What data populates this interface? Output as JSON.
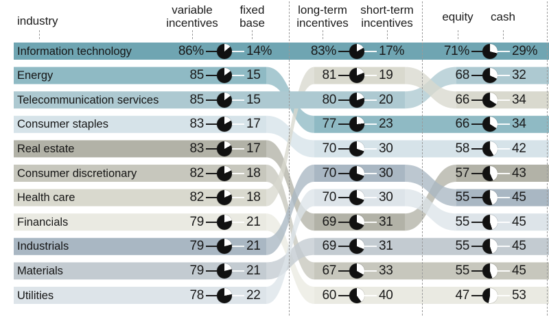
{
  "headers": {
    "industry": "industry",
    "variable": "variable\nincentives",
    "fixed": "fixed\nbase",
    "long_term": "long-term\nincentives",
    "short_term": "short-term\nincentives",
    "equity": "equity",
    "cash": "cash"
  },
  "style": {
    "text_color": "#1a1a1a",
    "divider_color": "#9a9a9a",
    "pie_black": "#111111",
    "pie_white": "#ffffff",
    "background": "#ffffff"
  },
  "chart_data": {
    "type": "table",
    "subtype": "ribbon-bump-flow-chart",
    "unit": "%",
    "percent_suffix_on_first_row_only": true,
    "column_pairs": [
      [
        "variable incentives",
        "fixed base"
      ],
      [
        "long-term incentives",
        "short-term incentives"
      ],
      [
        "equity",
        "cash"
      ]
    ],
    "rows": [
      {
        "industry": "Information technology",
        "variable_incentives": 86,
        "fixed_base": 14,
        "long_term_incentives": 83,
        "short_term_incentives": 17,
        "equity": 71,
        "cash": 29,
        "color": "#6fa5b2",
        "mid_row": 0,
        "right_row": 0
      },
      {
        "industry": "Energy",
        "variable_incentives": 85,
        "fixed_base": 15,
        "long_term_incentives": 77,
        "short_term_incentives": 23,
        "equity": 66,
        "cash": 34,
        "color": "#8fbac4",
        "mid_row": 3,
        "right_row": 3
      },
      {
        "industry": "Telecommunication services",
        "variable_incentives": 85,
        "fixed_base": 15,
        "long_term_incentives": 80,
        "short_term_incentives": 20,
        "equity": 68,
        "cash": 32,
        "color": "#adc9d1",
        "mid_row": 2,
        "right_row": 1
      },
      {
        "industry": "Consumer staples",
        "variable_incentives": 83,
        "fixed_base": 17,
        "long_term_incentives": 70,
        "short_term_incentives": 30,
        "equity": 58,
        "cash": 42,
        "color": "#d6e3e9",
        "mid_row": 4,
        "right_row": 4
      },
      {
        "industry": "Real estate",
        "variable_incentives": 83,
        "fixed_base": 17,
        "long_term_incentives": 69,
        "short_term_incentives": 31,
        "equity": 57,
        "cash": 43,
        "color": "#b2b2a7",
        "mid_row": 7,
        "right_row": 5
      },
      {
        "industry": "Consumer discretionary",
        "variable_incentives": 82,
        "fixed_base": 18,
        "long_term_incentives": 67,
        "short_term_incentives": 33,
        "equity": 55,
        "cash": 45,
        "color": "#c7c7bd",
        "mid_row": 9,
        "right_row": 9
      },
      {
        "industry": "Health care",
        "variable_incentives": 82,
        "fixed_base": 18,
        "long_term_incentives": 81,
        "short_term_incentives": 19,
        "equity": 66,
        "cash": 34,
        "color": "#d9d9ce",
        "mid_row": 1,
        "right_row": 2
      },
      {
        "industry": "Financials",
        "variable_incentives": 79,
        "fixed_base": 21,
        "long_term_incentives": 60,
        "short_term_incentives": 40,
        "equity": 47,
        "cash": 53,
        "color": "#eaeae2",
        "mid_row": 10,
        "right_row": 10
      },
      {
        "industry": "Industrials",
        "variable_incentives": 79,
        "fixed_base": 21,
        "long_term_incentives": 70,
        "short_term_incentives": 30,
        "equity": 55,
        "cash": 45,
        "color": "#a9b7c3",
        "mid_row": 5,
        "right_row": 6
      },
      {
        "industry": "Materials",
        "variable_incentives": 79,
        "fixed_base": 21,
        "long_term_incentives": 69,
        "short_term_incentives": 31,
        "equity": 55,
        "cash": 45,
        "color": "#c3cbd1",
        "mid_row": 8,
        "right_row": 8
      },
      {
        "industry": "Utilities",
        "variable_incentives": 78,
        "fixed_base": 22,
        "long_term_incentives": 70,
        "short_term_incentives": 30,
        "equity": 55,
        "cash": 45,
        "color": "#dde4e9",
        "mid_row": 6,
        "right_row": 7
      }
    ]
  }
}
